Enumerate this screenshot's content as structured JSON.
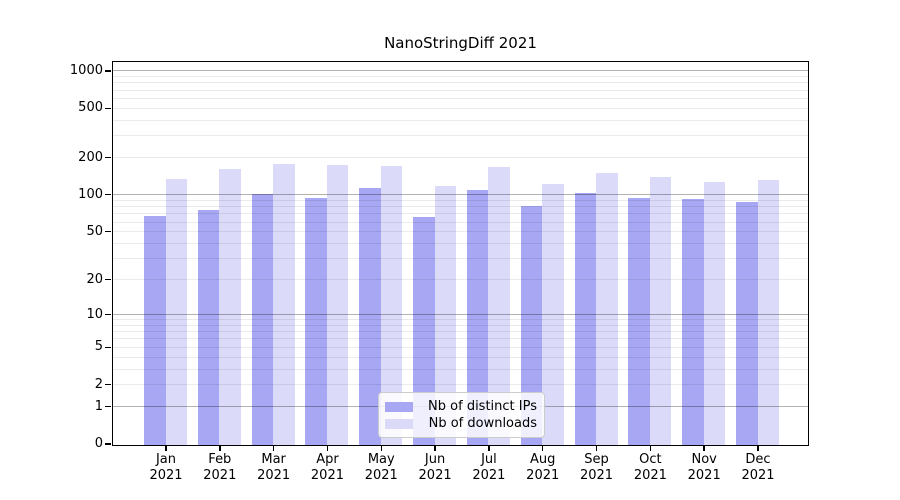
{
  "chart_data": {
    "type": "bar",
    "title": "NanoStringDiff 2021",
    "categories": [
      "Jan 2021",
      "Feb 2021",
      "Mar 2021",
      "Apr 2021",
      "May 2021",
      "Jun 2021",
      "Jul 2021",
      "Aug 2021",
      "Sep 2021",
      "Oct 2021",
      "Nov 2021",
      "Dec 2021"
    ],
    "series": [
      {
        "name": "Nb of distinct IPs",
        "color": "#a7a7f3",
        "values": [
          67,
          74,
          100,
          94,
          113,
          65,
          108,
          81,
          103,
          94,
          92,
          87
        ]
      },
      {
        "name": "Nb of downloads",
        "color": "#dbdbf9",
        "values": [
          132,
          161,
          176,
          172,
          169,
          116,
          165,
          122,
          148,
          139,
          126,
          130
        ]
      }
    ],
    "xlabel": "",
    "ylabel": "",
    "y_axis": {
      "scale": "log10(1+y)",
      "ticks": [
        0,
        1,
        2,
        5,
        10,
        20,
        50,
        100,
        200,
        500,
        1000
      ],
      "top_value": 1180,
      "grid": "both"
    },
    "legend_position": "lower center"
  },
  "colors": {
    "background": "#ffffff",
    "spine": "#000000",
    "bar_distinct_ips": "#a7a7f3",
    "bar_downloads": "#dbdbf9"
  }
}
